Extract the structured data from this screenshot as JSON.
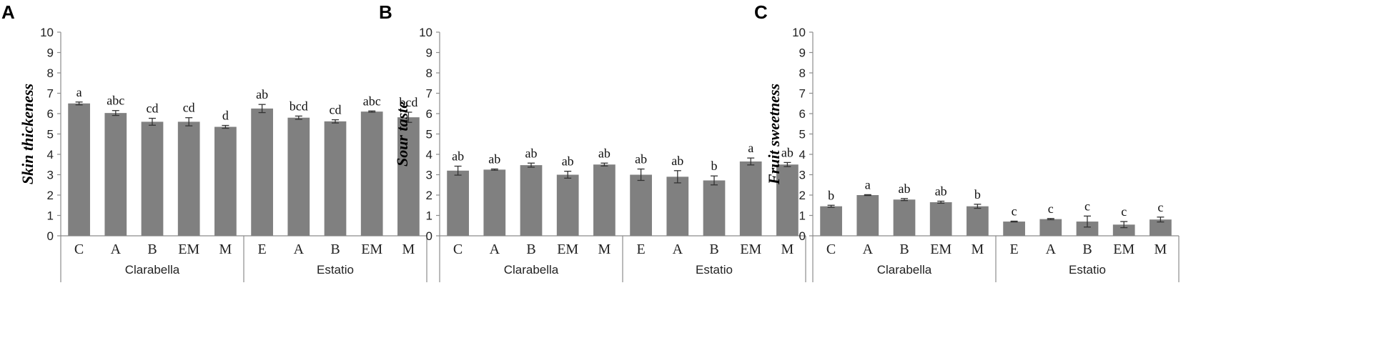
{
  "chart_data": [
    {
      "panel": "A",
      "type": "bar",
      "ylabel": "Skin thickeness",
      "ylim": [
        0,
        10
      ],
      "yticks": [
        "0",
        "1",
        "2",
        "3",
        "4",
        "5",
        "6",
        "7",
        "8",
        "9",
        "10"
      ],
      "categories": [
        "C",
        "A",
        "B",
        "EM",
        "M",
        "E",
        "A",
        "B",
        "EM",
        "M"
      ],
      "groups": [
        {
          "name": "Clarabella",
          "count": 5
        },
        {
          "name": "Estatio",
          "count": 5
        }
      ],
      "values": [
        6.5,
        6.03,
        5.6,
        5.6,
        5.35,
        6.25,
        5.8,
        5.62,
        6.1,
        5.82
      ],
      "errors": [
        0.07,
        0.12,
        0.17,
        0.2,
        0.07,
        0.2,
        0.08,
        0.08,
        0.03,
        0.25
      ],
      "labels": [
        "a",
        "abc",
        "cd",
        "cd",
        "d",
        "ab",
        "bcd",
        "cd",
        "abc",
        "bcd"
      ]
    },
    {
      "panel": "B",
      "type": "bar",
      "ylabel": "Sour taste",
      "ylim": [
        0,
        10
      ],
      "yticks": [
        "0",
        "1",
        "2",
        "3",
        "4",
        "5",
        "6",
        "7",
        "8",
        "9",
        "10"
      ],
      "categories": [
        "C",
        "A",
        "B",
        "EM",
        "M",
        "E",
        "A",
        "B",
        "EM",
        "M"
      ],
      "groups": [
        {
          "name": "Clarabella",
          "count": 5
        },
        {
          "name": "Estatio",
          "count": 5
        }
      ],
      "values": [
        3.2,
        3.25,
        3.47,
        3.0,
        3.5,
        3.0,
        2.9,
        2.72,
        3.65,
        3.5
      ],
      "errors": [
        0.22,
        0.03,
        0.1,
        0.17,
        0.07,
        0.28,
        0.3,
        0.22,
        0.17,
        0.1
      ],
      "labels": [
        "ab",
        "ab",
        "ab",
        "ab",
        "ab",
        "ab",
        "ab",
        "b",
        "a",
        "ab"
      ]
    },
    {
      "panel": "C",
      "type": "bar",
      "ylabel": "Fruit sweetness",
      "ylim": [
        0,
        10
      ],
      "yticks": [
        "0",
        "1",
        "2",
        "3",
        "4",
        "5",
        "6",
        "7",
        "8",
        "9",
        "10"
      ],
      "categories": [
        "C",
        "A",
        "B",
        "EM",
        "M",
        "E",
        "A",
        "B",
        "EM",
        "M"
      ],
      "groups": [
        {
          "name": "Clarabella",
          "count": 5
        },
        {
          "name": "Estatio",
          "count": 5
        }
      ],
      "values": [
        1.45,
        2.0,
        1.78,
        1.65,
        1.45,
        0.7,
        0.82,
        0.7,
        0.55,
        0.8
      ],
      "errors": [
        0.05,
        0.02,
        0.05,
        0.05,
        0.1,
        0.02,
        0.03,
        0.27,
        0.15,
        0.12
      ],
      "labels": [
        "b",
        "a",
        "ab",
        "ab",
        "b",
        "c",
        "c",
        "c",
        "c",
        "c"
      ]
    }
  ],
  "style": {
    "bar_color": "#808080",
    "axis_color": "#8c8c8c",
    "error_color": "#333333"
  }
}
